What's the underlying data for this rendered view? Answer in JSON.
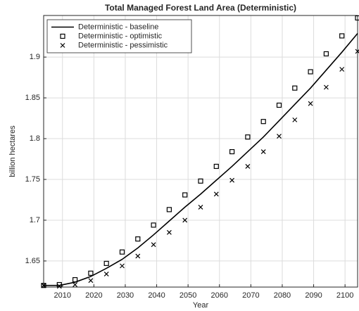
{
  "chart_data": {
    "type": "line",
    "title": "Total Managed Forest Land Area (Deterministic)",
    "xlabel": "Year",
    "ylabel": "billion hectares",
    "x": [
      2004,
      2009,
      2014,
      2019,
      2024,
      2029,
      2034,
      2039,
      2044,
      2049,
      2054,
      2059,
      2064,
      2069,
      2074,
      2079,
      2084,
      2089,
      2094,
      2099,
      2104
    ],
    "series": [
      {
        "name": "Deterministic - baseline",
        "color": "#000000",
        "marker": "none",
        "values": [
          1.62,
          1.62,
          1.624,
          1.631,
          1.641,
          1.652,
          1.666,
          1.682,
          1.699,
          1.716,
          1.732,
          1.749,
          1.766,
          1.784,
          1.802,
          1.822,
          1.842,
          1.862,
          1.884,
          1.906,
          1.929
        ]
      },
      {
        "name": "Deterministic - optimistic",
        "color": "#000000",
        "marker": "square",
        "values": [
          1.62,
          1.621,
          1.627,
          1.635,
          1.647,
          1.661,
          1.677,
          1.694,
          1.713,
          1.731,
          1.748,
          1.766,
          1.784,
          1.802,
          1.821,
          1.841,
          1.862,
          1.882,
          1.904,
          1.926,
          1.948
        ]
      },
      {
        "name": "Deterministic - pessimistic",
        "color": "#000000",
        "marker": "x",
        "values": [
          1.62,
          1.619,
          1.621,
          1.626,
          1.634,
          1.644,
          1.656,
          1.67,
          1.685,
          1.7,
          1.716,
          1.732,
          1.749,
          1.766,
          1.784,
          1.803,
          1.823,
          1.843,
          1.863,
          1.885,
          1.907
        ]
      }
    ],
    "xlim": [
      2004,
      2104
    ],
    "ylim": [
      1.618,
      1.951
    ],
    "xticks": [
      2010,
      2020,
      2030,
      2040,
      2050,
      2060,
      2070,
      2080,
      2090,
      2100
    ],
    "yticks": [
      1.65,
      1.7,
      1.75,
      1.8,
      1.85,
      1.9
    ],
    "grid": true,
    "legend": "top-left"
  }
}
